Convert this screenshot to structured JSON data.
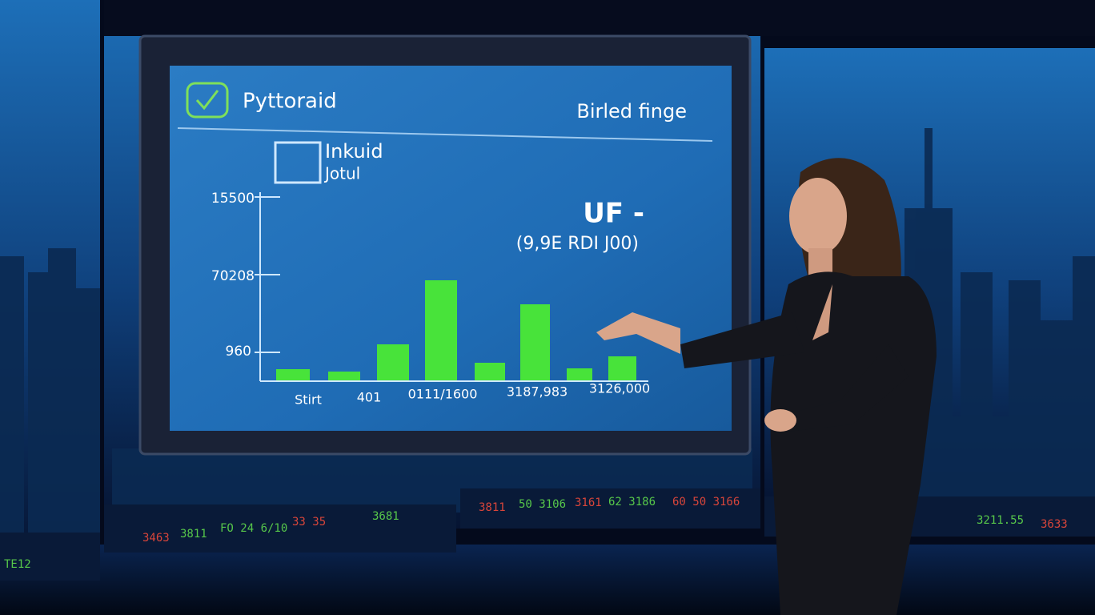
{
  "screen": {
    "title": "Pyttoraid",
    "subtitle": "Birled finge",
    "panel": {
      "line1": "Inkuid",
      "line2": "Jotul"
    },
    "y_labels": [
      "15500",
      "70208",
      "960"
    ],
    "headline": "UF -",
    "note": "(9,9E RDI J00)",
    "x_labels": [
      "Stirt",
      "401",
      "0111/1600",
      "3187,983",
      "3126,000"
    ]
  },
  "ticker": {
    "left": [
      "TE12",
      "3463",
      "3811",
      "FO 24 6/10",
      "33 35",
      "3681"
    ],
    "center": [
      "3811",
      "50 3106",
      "3161",
      "62 3186",
      "60 50 3166"
    ],
    "right": [
      "3211.55",
      "3633"
    ]
  }
}
